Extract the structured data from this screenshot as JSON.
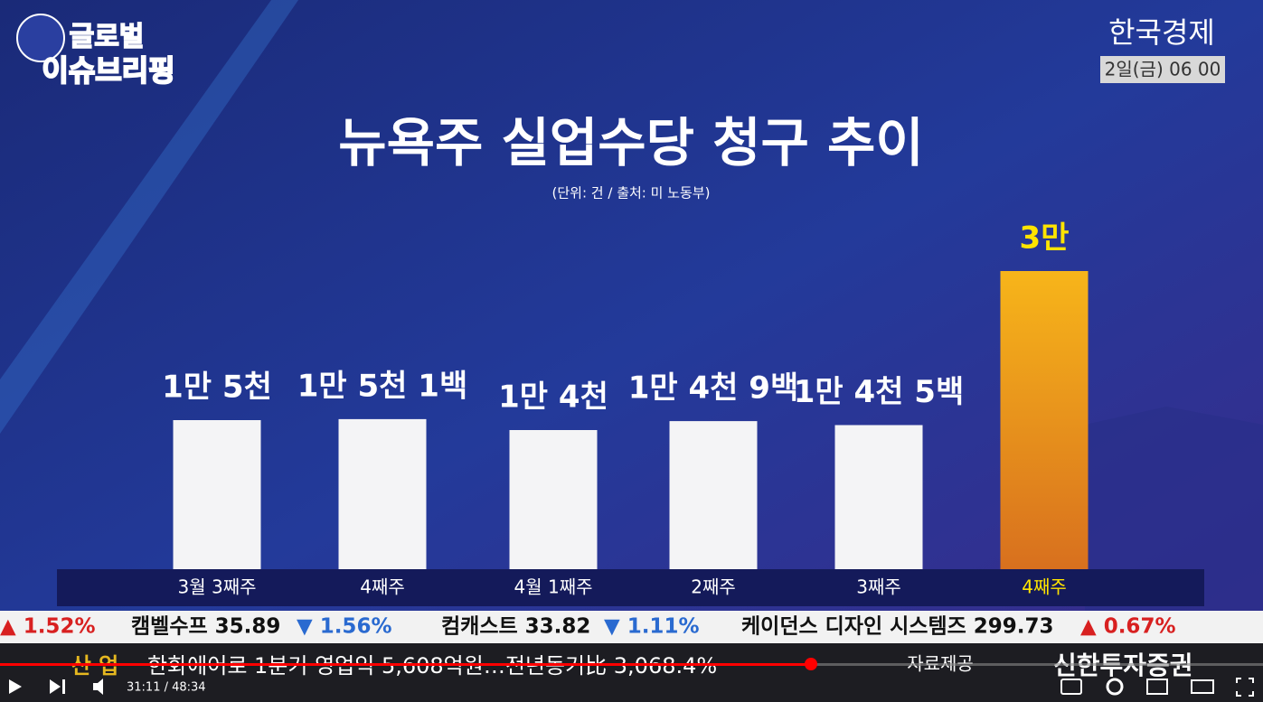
{
  "header": {
    "logo_top": "글로벌",
    "logo_bottom": "이슈브리핑",
    "channel": "한국경제",
    "datetime": "2일(금) 06 00"
  },
  "chart_data": {
    "type": "bar",
    "title": "뉴욕주 실업수당 청구 추이",
    "subtitle": "(단위: 건 / 출처: 미 노동부)",
    "categories": [
      "3월 3째주",
      "4째주",
      "4월 1째주",
      "2째주",
      "3째주",
      "4째주"
    ],
    "values": [
      15000,
      15100,
      14000,
      14900,
      14500,
      30000
    ],
    "value_labels": [
      "1만 5천",
      "1만 5천 1백",
      "1만 4천",
      "1만 4천 9백",
      "1만 4천 5백",
      "3만"
    ],
    "colors": [
      "#f4f4f6",
      "#f4f4f6",
      "#f4f4f6",
      "#f4f4f6",
      "#f4f4f6",
      "#f2a21c"
    ]
  },
  "ticker": [
    "▲ 1.52%",
    "캠벨수프 35.89",
    "▼ 1.56%",
    "컴캐스트 33.82",
    "▼ 1.11%",
    "케이던스 디자인 시스템즈 299.73",
    "▲ 0.67%"
  ],
  "news": {
    "section": "산 업",
    "headline": "한화에어로 1분기 영업익 5,608억원…전년동기比 3,068.4%",
    "provider_label": "자료제공",
    "provider": "신한투자증권"
  },
  "player": {
    "time": "31:11 / 48:34"
  }
}
